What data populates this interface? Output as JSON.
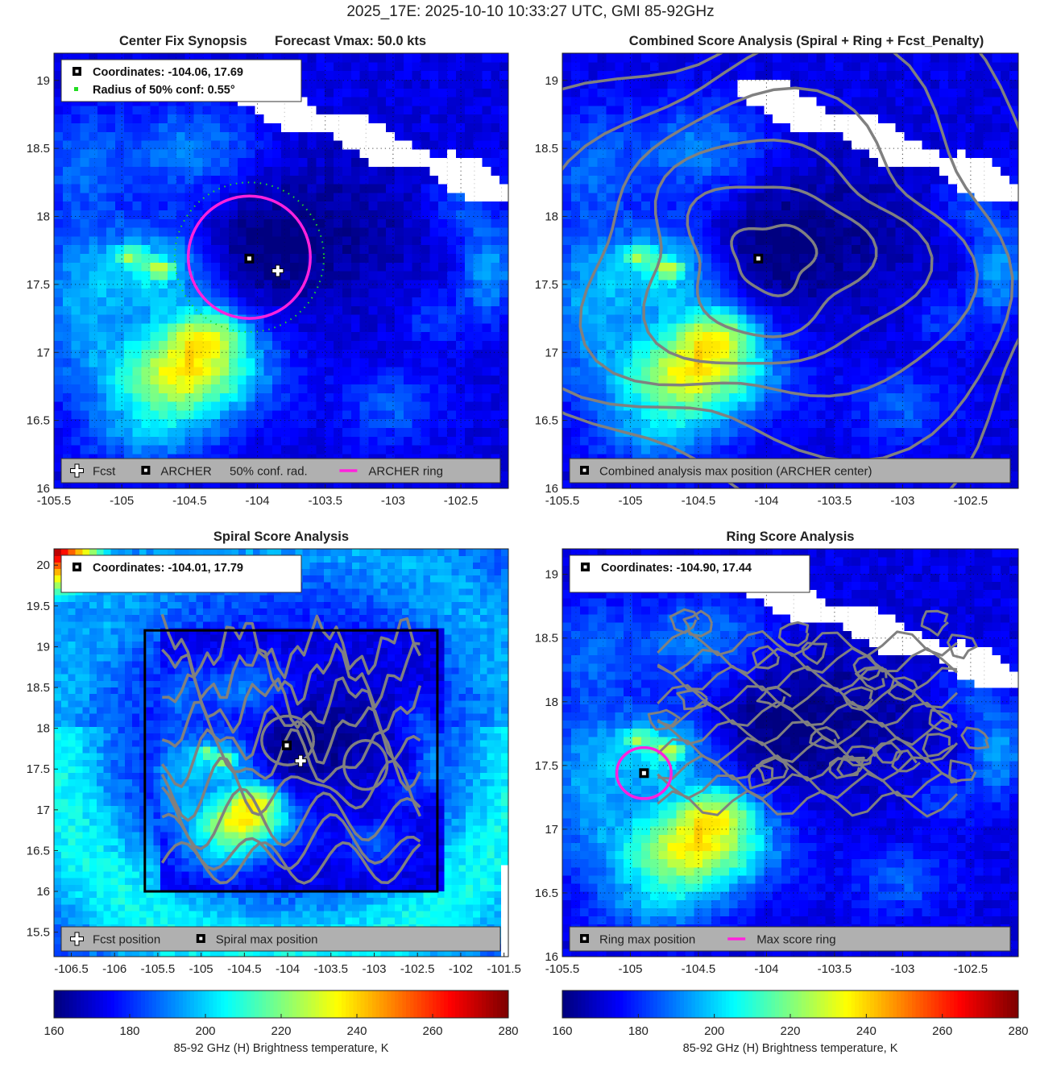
{
  "figure": {
    "suptitle": "2025_17E: 2025-10-10 10:33:27 UTC, GMI 85-92GHz",
    "colors": {
      "magenta": "#ff22dd",
      "contour": "#808080",
      "missing": "#ffffff",
      "legend_bg": "#b0b0b0"
    }
  },
  "colorbars": {
    "label": "85-92 GHz (H) Brightness temperature, K",
    "ticks": [
      "160",
      "180",
      "200",
      "220",
      "240",
      "260",
      "280"
    ],
    "range": [
      160,
      280
    ],
    "colormap": "jet-reversed"
  },
  "chart_data": [
    {
      "id": "p1",
      "type": "heatmap",
      "title_left": "Center Fix Synopsis",
      "title_right": "Forecast Vmax: 50.0 kts",
      "xlim": [
        -105.5,
        -102.15
      ],
      "ylim": [
        16.0,
        19.2
      ],
      "xticks": [
        "-105.5",
        "-105",
        "-104.5",
        "-104",
        "-103.5",
        "-103",
        "-102.5"
      ],
      "xtick_values": [
        -105.5,
        -105,
        -104.5,
        -104,
        -103.5,
        -103,
        -102.5
      ],
      "yticks": [
        "16",
        "16.5",
        "17",
        "17.5",
        "18",
        "18.5",
        "19"
      ],
      "ytick_values": [
        16,
        16.5,
        17,
        17.5,
        18,
        18.5,
        19
      ],
      "grid": "dotted",
      "info_box": [
        "Coordinates: -104.06, 17.69",
        "Radius of 50% conf: 0.55°"
      ],
      "info_icons": [
        "archer-square-icon",
        "green-dot-icon"
      ],
      "legend": [
        {
          "icon": "fcst-cross-icon",
          "label": "Fcst"
        },
        {
          "icon": "archer-square-icon",
          "label": "ARCHER"
        },
        {
          "icon": "none",
          "label": "50% conf. rad."
        },
        {
          "icon": "magenta-line-icon",
          "label": "ARCHER ring"
        }
      ],
      "markers": {
        "archer": [
          -104.06,
          17.69
        ],
        "fcst": [
          -103.85,
          17.6
        ],
        "ring_center": [
          -104.06,
          17.7
        ],
        "ring_radius_deg": 0.45,
        "conf_radius_deg": 0.55
      }
    },
    {
      "id": "p2",
      "type": "heatmap",
      "title": "Combined Score Analysis (Spiral + Ring + Fcst_Penalty)",
      "xlim": [
        -105.5,
        -102.15
      ],
      "ylim": [
        16.0,
        19.2
      ],
      "xticks": [
        "-105.5",
        "-105",
        "-104.5",
        "-104",
        "-103.5",
        "-103",
        "-102.5"
      ],
      "xtick_values": [
        -105.5,
        -105,
        -104.5,
        -104,
        -103.5,
        -103,
        -102.5
      ],
      "yticks": [
        "16",
        "16.5",
        "17",
        "17.5",
        "18",
        "18.5",
        "19"
      ],
      "ytick_values": [
        16,
        16.5,
        17,
        17.5,
        18,
        18.5,
        19
      ],
      "grid": "dotted",
      "legend": [
        {
          "icon": "archer-square-icon",
          "label": "Combined analysis max position (ARCHER center)"
        }
      ],
      "markers": {
        "archer": [
          -104.06,
          17.69
        ]
      },
      "contours": "concentric"
    },
    {
      "id": "p3",
      "type": "heatmap",
      "title": "Spiral Score Analysis",
      "xlim": [
        -106.7,
        -101.45
      ],
      "ylim": [
        15.2,
        20.2
      ],
      "xticks": [
        "-106.5",
        "-106",
        "-105.5",
        "-105",
        "-104.5",
        "-104",
        "-103.5",
        "-103",
        "-102.5",
        "-102",
        "-101.5"
      ],
      "xtick_values": [
        -106.5,
        -106,
        -105.5,
        -105,
        -104.5,
        -104,
        -103.5,
        -103,
        -102.5,
        -102,
        -101.5
      ],
      "yticks": [
        "15.5",
        "16",
        "16.5",
        "17",
        "17.5",
        "18",
        "18.5",
        "19",
        "19.5",
        "20"
      ],
      "ytick_values": [
        15.5,
        16,
        16.5,
        17,
        17.5,
        18,
        18.5,
        19,
        19.5,
        20
      ],
      "grid": "none",
      "info_box": [
        "Coordinates: -104.01, 17.79"
      ],
      "info_icons": [
        "spiral-square-icon"
      ],
      "legend": [
        {
          "icon": "fcst-cross-icon",
          "label": "Fcst position"
        },
        {
          "icon": "spiral-square-icon",
          "label": "Spiral max position"
        }
      ],
      "markers": {
        "spiral": [
          -104.01,
          17.79
        ],
        "fcst": [
          -103.85,
          17.6
        ]
      },
      "search_box": [
        -105.65,
        16.0,
        -102.27,
        19.2
      ]
    },
    {
      "id": "p4",
      "type": "heatmap",
      "title": "Ring Score Analysis",
      "xlim": [
        -105.5,
        -102.15
      ],
      "ylim": [
        16.0,
        19.2
      ],
      "xticks": [
        "-105.5",
        "-105",
        "-104.5",
        "-104",
        "-103.5",
        "-103",
        "-102.5"
      ],
      "xtick_values": [
        -105.5,
        -105,
        -104.5,
        -104,
        -103.5,
        -103,
        -102.5
      ],
      "yticks": [
        "16",
        "16.5",
        "17",
        "17.5",
        "18",
        "18.5",
        "19"
      ],
      "ytick_values": [
        16,
        16.5,
        17,
        17.5,
        18,
        18.5,
        19
      ],
      "grid": "dotted",
      "info_box": [
        "Coordinates: -104.90, 17.44"
      ],
      "info_icons": [
        "ring-square-icon"
      ],
      "legend": [
        {
          "icon": "ring-square-icon",
          "label": "Ring max position"
        },
        {
          "icon": "magenta-line-icon",
          "label": "Max score ring"
        }
      ],
      "markers": {
        "ring": [
          -104.9,
          17.44
        ],
        "ring_center": [
          -104.9,
          17.44
        ],
        "ring_radius_deg": 0.2
      }
    }
  ]
}
